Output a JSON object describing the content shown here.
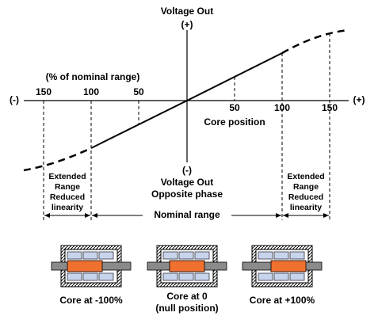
{
  "header": {
    "title": "Voltage Out",
    "positive": "(+)"
  },
  "axis": {
    "label": "(% of nominal range)",
    "minus": "(-)",
    "plus": "(+)",
    "left_ticks": [
      "150",
      "100",
      "50"
    ],
    "right_ticks": [
      "50",
      "100",
      "150"
    ],
    "title": "Core position"
  },
  "bottom": {
    "minus": "(-)",
    "title": "Voltage Out",
    "subtitle": "Opposite phase"
  },
  "left_note": [
    "Extended",
    "Range",
    "Reduced",
    "linearity"
  ],
  "right_note": [
    "Extended",
    "Range",
    "Reduced",
    "linearity"
  ],
  "nominal": "Nominal range",
  "cores": [
    {
      "label": "Core at -100%"
    },
    {
      "label": "Core at 0",
      "sublabel": "(null position)"
    },
    {
      "label": "Core at +100%"
    }
  ]
}
